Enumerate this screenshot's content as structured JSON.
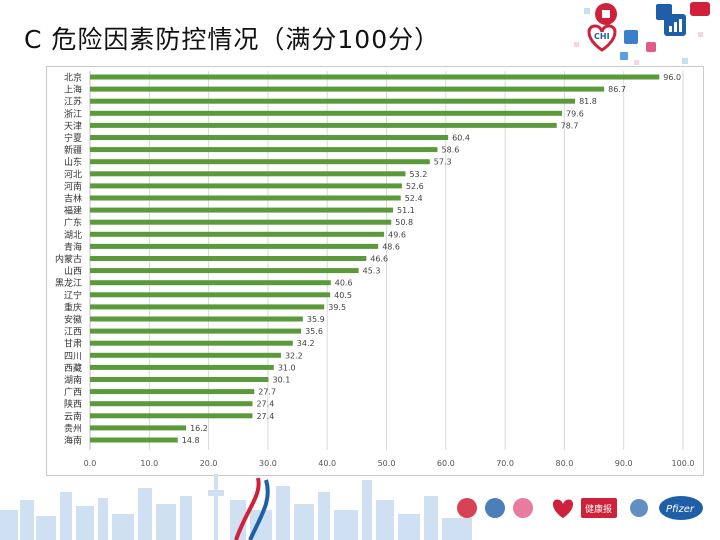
{
  "page": {
    "title": "C  危险因素防控情况（满分100分）"
  },
  "logos": {
    "top_badge_text": "CHI",
    "bottom_logo_text": "Pfizer",
    "bottom_health_text": "健康报",
    "colors": {
      "red": "#d0213a",
      "blue": "#1f5fa8",
      "skyline": "#cfe0f3"
    }
  },
  "chart_data": {
    "type": "bar",
    "orientation": "horizontal",
    "categories": [
      "北京",
      "上海",
      "江苏",
      "浙江",
      "天津",
      "宁夏",
      "新疆",
      "山东",
      "河北",
      "河南",
      "吉林",
      "福建",
      "广东",
      "湖北",
      "青海",
      "内蒙古",
      "山西",
      "黑龙江",
      "辽宁",
      "重庆",
      "安徽",
      "江西",
      "甘肃",
      "四川",
      "西藏",
      "湖南",
      "广西",
      "陕西",
      "云南",
      "贵州",
      "海南"
    ],
    "values": [
      96.0,
      86.7,
      81.8,
      79.6,
      78.7,
      60.4,
      58.6,
      57.3,
      53.2,
      52.6,
      52.4,
      51.1,
      50.8,
      49.6,
      48.6,
      46.6,
      45.3,
      40.6,
      40.5,
      39.5,
      35.9,
      35.6,
      34.2,
      32.2,
      31.0,
      30.1,
      27.7,
      27.4,
      27.4,
      16.2,
      14.8
    ],
    "value_labels": [
      "96.0",
      "86.7",
      "81.8",
      "79.6",
      "78.7",
      "60.4",
      "58.6",
      "57.3",
      "53.2",
      "52.6",
      "52.4",
      "51.1",
      "50.8",
      "49.6",
      "48.6",
      "46.6",
      "45.3",
      "40.6",
      "40.5",
      "39.5",
      "35.9",
      "35.6",
      "34.2",
      "32.2",
      "31.0",
      "30.1",
      "27.7",
      "27.4",
      "27.4",
      "16.2",
      "14.8"
    ],
    "x_ticks": [
      "0.0",
      "10.0",
      "20.0",
      "30.0",
      "40.0",
      "50.0",
      "60.0",
      "70.0",
      "80.0",
      "90.0",
      "100.0"
    ],
    "xlim": [
      0,
      100
    ],
    "grid": true,
    "bar_color": "#5b9a3a",
    "grid_color": "#d9d9d9"
  }
}
